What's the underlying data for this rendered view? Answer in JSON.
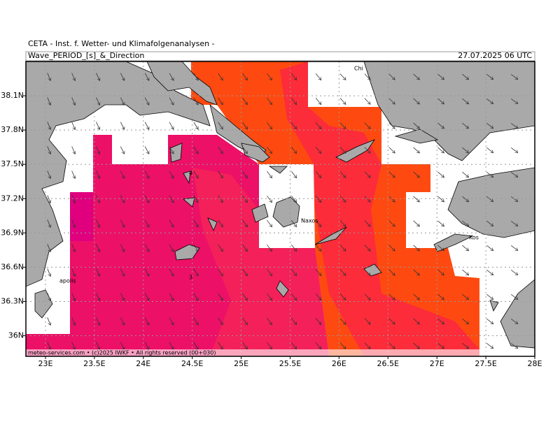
{
  "header": {
    "institute": "CETA - Inst. f. Wetter- und Klimafolgenanalysen -",
    "parameter": "Wave_PERIOD_[s]_&_Direction",
    "valid_time": "27.07.2025 06 UTC"
  },
  "map": {
    "xlim": [
      22.8,
      28
    ],
    "ylim": [
      35.82,
      38.4
    ],
    "xticks": [
      {
        "value": 23,
        "label": "23E"
      },
      {
        "value": 23.5,
        "label": "23.5E"
      },
      {
        "value": 24,
        "label": "24E"
      },
      {
        "value": 24.5,
        "label": "24.5E"
      },
      {
        "value": 25,
        "label": "25E"
      },
      {
        "value": 25.5,
        "label": "25.5E"
      },
      {
        "value": 26,
        "label": "26E"
      },
      {
        "value": 26.5,
        "label": "26.5E"
      },
      {
        "value": 27,
        "label": "27E"
      },
      {
        "value": 27.5,
        "label": "27.5E"
      },
      {
        "value": 28,
        "label": "28E"
      }
    ],
    "yticks": [
      {
        "value": 36,
        "label": "36N"
      },
      {
        "value": 36.3,
        "label": "36.3N"
      },
      {
        "value": 36.6,
        "label": "36.6N"
      },
      {
        "value": 36.9,
        "label": "36.9N"
      },
      {
        "value": 37.2,
        "label": "37.2N"
      },
      {
        "value": 37.5,
        "label": "37.5N"
      },
      {
        "value": 37.8,
        "label": "37.8N"
      },
      {
        "value": 38.1,
        "label": "38.1N"
      }
    ],
    "place_labels": [
      "Chi",
      "Naxos",
      "Kos",
      "apolis"
    ],
    "contour_labels": [
      "4",
      "3"
    ]
  },
  "footer": "meteo-services.com • (c)2025 IWKF • All rights reserved (00+030)"
}
